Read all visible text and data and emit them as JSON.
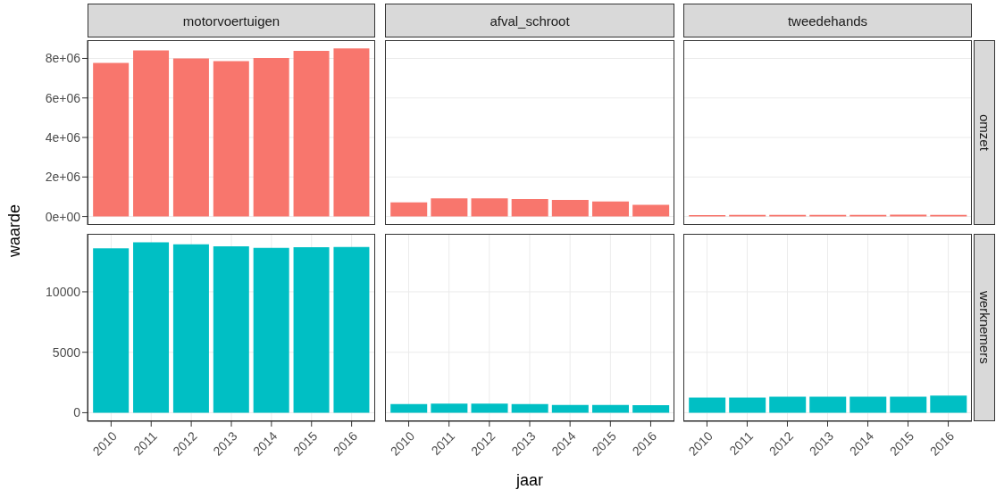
{
  "chart_data": [
    {
      "type": "bar",
      "title": "motorvoertuigen",
      "ylabel": "waarde",
      "categories": [
        "2010",
        "2011",
        "2012",
        "2013",
        "2014",
        "2015",
        "2016"
      ],
      "values": [
        7770000,
        8410000,
        8000000,
        7860000,
        8020000,
        8380000,
        8510000
      ],
      "color": "#f8766d",
      "ylim": [
        -425000,
        8925000
      ],
      "yticks": [
        {
          "value": 0,
          "label": "0e+00"
        },
        {
          "value": 2000000,
          "label": "2e+06"
        },
        {
          "value": 4000000,
          "label": "4e+06"
        },
        {
          "value": 6000000,
          "label": "6e+06"
        },
        {
          "value": 8000000,
          "label": "8e+06"
        }
      ],
      "grid": true,
      "tick_labels": "y"
    },
    {
      "type": "bar",
      "title": "afval_schroot",
      "categories": [
        "2010",
        "2011",
        "2012",
        "2013",
        "2014",
        "2015",
        "2016"
      ],
      "values": [
        710000,
        920000,
        920000,
        880000,
        840000,
        760000,
        590000
      ],
      "color": "#f8766d",
      "ylim": [
        -425000,
        8925000
      ],
      "yticks": [
        0,
        2000000,
        4000000,
        6000000,
        8000000
      ],
      "grid": true,
      "tick_labels": false
    },
    {
      "type": "bar",
      "title": "tweedehands",
      "y2label": "omzet",
      "categories": [
        "2010",
        "2011",
        "2012",
        "2013",
        "2014",
        "2015",
        "2016"
      ],
      "values": [
        70000,
        80000,
        80000,
        80000,
        80000,
        90000,
        80000
      ],
      "color": "#f8766d",
      "ylim": [
        -425000,
        8925000
      ],
      "yticks": [
        0,
        2000000,
        4000000,
        6000000,
        8000000
      ],
      "grid": true,
      "tick_labels": false
    },
    {
      "type": "bar",
      "categories": [
        "2010",
        "2011",
        "2012",
        "2013",
        "2014",
        "2015",
        "2016"
      ],
      "values": [
        13600,
        14090,
        13920,
        13770,
        13630,
        13680,
        13700
      ],
      "color": "#00bfc4",
      "ylim": [
        -705,
        14795
      ],
      "yticks": [
        0,
        5000,
        10000
      ],
      "grid": true
    },
    {
      "type": "bar",
      "xlabel": "jaar",
      "categories": [
        "2010",
        "2011",
        "2012",
        "2013",
        "2014",
        "2015",
        "2016"
      ],
      "values": [
        710,
        750,
        750,
        710,
        650,
        650,
        620
      ],
      "color": "#00bfc4",
      "ylim": [
        -705,
        14795
      ],
      "yticks": [
        0,
        5000,
        10000
      ],
      "grid": true,
      "tick_labels": "x"
    },
    {
      "type": "bar",
      "y2label": "werknemers",
      "categories": [
        "2010",
        "2011",
        "2012",
        "2013",
        "2014",
        "2015",
        "2016"
      ],
      "values": [
        1250,
        1250,
        1320,
        1320,
        1320,
        1330,
        1420
      ],
      "color": "#00bfc4",
      "ylim": [
        -705,
        14795
      ],
      "yticks": [
        0,
        5000,
        10000
      ],
      "grid": true,
      "tick_labels": "x"
    }
  ]
}
